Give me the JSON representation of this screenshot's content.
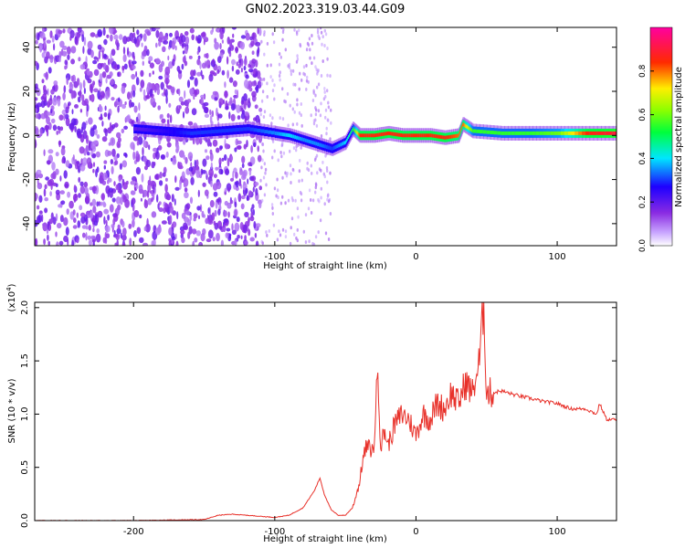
{
  "title": "GN02.2023.319.03.44.G09",
  "chart_data": [
    {
      "type": "heatmap",
      "xlabel": "Height of straight line (km)",
      "ylabel": "Frequency (Hz)",
      "xlim": [
        -270,
        142
      ],
      "ylim": [
        -50,
        49
      ],
      "xticks": [
        -200,
        -100,
        0,
        100
      ],
      "yticks": [
        -40,
        -20,
        0,
        20,
        40
      ],
      "colorbar": {
        "label": "Normalized spectral amplitude",
        "range": [
          0,
          1
        ],
        "ticks": [
          0.0,
          0.2,
          0.4,
          0.6,
          0.8
        ],
        "tick_labels": [
          "0.0",
          "0.2",
          "0.4",
          "0.6",
          "0.8"
        ],
        "colormap": [
          "#ffffff",
          "#9b30ff",
          "#2000ff",
          "#00e8ff",
          "#00ff40",
          "#ffee00",
          "#ff2000",
          "#ff0090"
        ]
      },
      "ridge": {
        "x": [
          -200,
          -180,
          -160,
          -140,
          -120,
          -100,
          -90,
          -80,
          -70,
          -60,
          -50,
          -45,
          -40,
          -30,
          -20,
          -10,
          0,
          10,
          20,
          30,
          33,
          40,
          60,
          80,
          100,
          120,
          142
        ],
        "freq": [
          3,
          2,
          1,
          2,
          3,
          1,
          0,
          -2,
          -4,
          -6,
          -3,
          3,
          0,
          0,
          1,
          0,
          0,
          0,
          -1,
          0,
          5,
          2,
          1,
          1,
          1,
          1,
          1
        ],
        "amplitude": [
          0.2,
          0.25,
          0.3,
          0.3,
          0.3,
          0.35,
          0.4,
          0.35,
          0.35,
          0.3,
          0.4,
          0.5,
          0.85,
          0.85,
          0.85,
          0.85,
          0.85,
          0.85,
          0.85,
          0.8,
          0.8,
          0.55,
          0.55,
          0.55,
          0.6,
          0.85,
          0.9
        ]
      },
      "grid": false
    },
    {
      "type": "line",
      "xlabel": "Height of straight line (km)",
      "ylabel": "SNR (10 * v/v)",
      "y_multiplier": "(x10",
      "y_multiplier_exp": "4",
      "y_multiplier_close": ")",
      "xlim": [
        -270,
        142
      ],
      "ylim": [
        0,
        2.05
      ],
      "xticks": [
        -200,
        -100,
        0,
        100
      ],
      "yticks": [
        0.0,
        0.5,
        1.0,
        1.5,
        2.0
      ],
      "ytick_labels": [
        "0.0",
        "0.5",
        "1.0",
        "1.5",
        "2.0"
      ],
      "series": [
        {
          "color": "#e8312a",
          "x": [
            -270,
            -200,
            -150,
            -140,
            -130,
            -110,
            -100,
            -90,
            -80,
            -72,
            -68,
            -65,
            -60,
            -55,
            -50,
            -45,
            -40,
            -38,
            -35,
            -30,
            -27,
            -25,
            -22,
            -20,
            -15,
            -10,
            -5,
            0,
            5,
            10,
            15,
            20,
            25,
            30,
            35,
            40,
            45,
            48,
            50,
            55,
            60,
            70,
            80,
            90,
            100,
            110,
            120,
            128,
            130,
            135,
            142
          ],
          "y": [
            0.0,
            0.0,
            0.01,
            0.05,
            0.06,
            0.04,
            0.03,
            0.05,
            0.12,
            0.28,
            0.4,
            0.25,
            0.1,
            0.05,
            0.05,
            0.12,
            0.35,
            0.55,
            0.7,
            0.65,
            1.45,
            0.7,
            0.85,
            0.7,
            0.9,
            1.0,
            0.95,
            0.8,
            1.0,
            0.95,
            1.1,
            1.05,
            1.2,
            1.1,
            1.3,
            1.2,
            1.5,
            2.05,
            1.2,
            1.2,
            1.22,
            1.18,
            1.15,
            1.12,
            1.1,
            1.05,
            1.05,
            1.0,
            1.1,
            0.95,
            0.95
          ]
        }
      ],
      "grid": false
    }
  ]
}
